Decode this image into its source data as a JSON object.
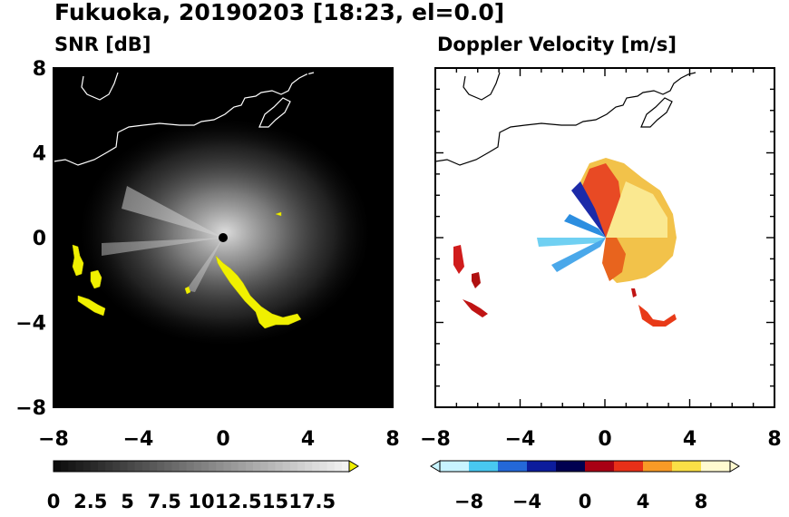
{
  "title": "Fukuoka, 20190203 [18:23, el=0.0]",
  "chart_data": [
    {
      "type": "heatmap",
      "panel": "left",
      "title": "SNR [dB]",
      "xlim": [
        -8,
        8
      ],
      "ylim": [
        -8,
        8
      ],
      "xticks": [
        "−8",
        "−4",
        "0",
        "4",
        "8"
      ],
      "yticks": [
        "8",
        "4",
        "0",
        "−4",
        "−8"
      ],
      "xtick_values": [
        -8,
        -4,
        0,
        4,
        8
      ],
      "ytick_values": [
        8,
        4,
        0,
        -4,
        -8
      ],
      "background_color": "#000000",
      "echo_color": "#f0f000",
      "colorbar": {
        "range": [
          0,
          20
        ],
        "extend": "max",
        "colors": [
          "#000000",
          "#ffffff"
        ],
        "tick_labels": [
          "0",
          "2.5",
          "5",
          "7.5",
          "10",
          "12.5",
          "15",
          "17.5"
        ],
        "tick_values": [
          0,
          2.5,
          5,
          7.5,
          10,
          12.5,
          15,
          17.5
        ]
      }
    },
    {
      "type": "heatmap",
      "panel": "right",
      "title": "Doppler Velocity [m/s]",
      "xlim": [
        -8,
        8
      ],
      "ylim": [
        -8,
        8
      ],
      "xticks": [
        "−8",
        "−4",
        "0",
        "4",
        "8"
      ],
      "xtick_values": [
        -8,
        -4,
        0,
        4,
        8
      ],
      "ytick_values": [
        8,
        4,
        0,
        -4,
        -8
      ],
      "background_color": "#ffffff",
      "colorbar": {
        "range": [
          -10,
          10
        ],
        "extend": "both",
        "colors": [
          "#c8f4ff",
          "#48c8f0",
          "#2468d8",
          "#0c1c9c",
          "#000050",
          "#a80014",
          "#e83018",
          "#f89a26",
          "#fae046",
          "#fffad0"
        ],
        "tick_labels": [
          "−8",
          "−4",
          "0",
          "4",
          "8"
        ],
        "tick_values": [
          -8,
          -4,
          0,
          4,
          8
        ]
      }
    }
  ]
}
